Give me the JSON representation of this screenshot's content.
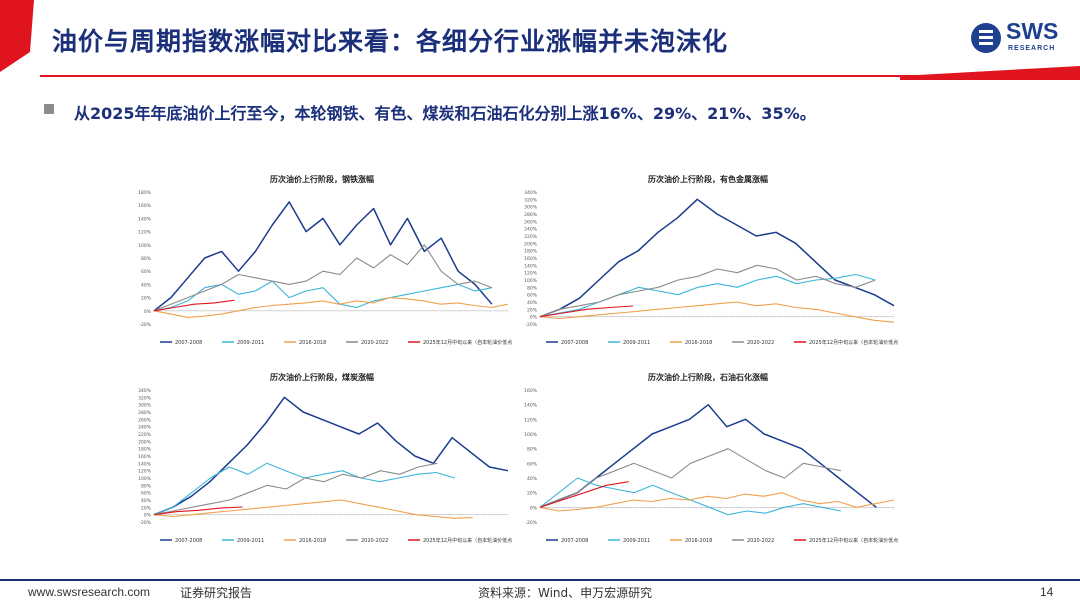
{
  "header": {
    "title": "油价与周期指数涨幅对比来看：各细分行业涨幅并未泡沫化",
    "logo_text": "SWS",
    "logo_sub": "RESEARCH",
    "accent_red": "#e0141e",
    "brand_blue": "#1b2f7a"
  },
  "bullet": {
    "text": "从2025年年底油价上行至今，本轮钢铁、有色、煤炭和石油石化分别上涨16%、29%、21%、35%。"
  },
  "series_colors": {
    "2007-2008": "#1a3b8f",
    "2009-2011": "#3bb5d9",
    "2016-2018": "#f0a04b",
    "2020-2022": "#8c8c8c",
    "2025": "#e0141e"
  },
  "chart_data": [
    {
      "type": "line",
      "title": "历次油价上行阶段，钢铁涨幅",
      "ylim": [
        -20,
        180
      ],
      "yticks": [
        "180%",
        "160%",
        "140%",
        "120%",
        "100%",
        "80%",
        "60%",
        "40%",
        "20%",
        "0%",
        "-20%"
      ],
      "legend": [
        "2007-2008",
        "2009-2011",
        "2016-2018",
        "2020-2022",
        "2025年12月中旬以来（自本轮油价低点以来）"
      ],
      "series": [
        {
          "name": "2007-2008",
          "values": [
            0,
            20,
            50,
            80,
            90,
            60,
            90,
            130,
            165,
            120,
            140,
            100,
            130,
            155,
            100,
            140,
            90,
            110,
            60,
            40,
            10
          ]
        },
        {
          "name": "2009-2011",
          "values": [
            0,
            5,
            15,
            35,
            40,
            25,
            30,
            45,
            20,
            30,
            35,
            10,
            5,
            15,
            20,
            25,
            30,
            35,
            40,
            30,
            35
          ]
        },
        {
          "name": "2016-2018",
          "values": [
            0,
            -5,
            -10,
            -8,
            -5,
            0,
            5,
            8,
            10,
            12,
            15,
            10,
            15,
            12,
            20,
            18,
            15,
            10,
            12,
            8,
            5,
            10
          ]
        },
        {
          "name": "2020-2022",
          "values": [
            0,
            10,
            20,
            30,
            40,
            55,
            50,
            45,
            40,
            45,
            60,
            55,
            80,
            65,
            85,
            70,
            100,
            60,
            40,
            45,
            35
          ]
        },
        {
          "name": "2025",
          "values": [
            0,
            5,
            10,
            12,
            16
          ]
        }
      ]
    },
    {
      "type": "line",
      "title": "历次油价上行阶段，有色金属涨幅",
      "ylim": [
        -20,
        340
      ],
      "yticks": [
        "340%",
        "320%",
        "300%",
        "280%",
        "260%",
        "240%",
        "220%",
        "200%",
        "180%",
        "160%",
        "140%",
        "120%",
        "100%",
        "80%",
        "60%",
        "40%",
        "20%",
        "0%",
        "-20%"
      ],
      "legend": [
        "2007-2008",
        "2009-2011",
        "2016-2018",
        "2020-2022",
        "2025年12月中旬以来（自本轮油价低点以来）"
      ],
      "series": [
        {
          "name": "2007-2008",
          "values": [
            0,
            20,
            50,
            100,
            150,
            180,
            230,
            270,
            320,
            280,
            250,
            220,
            230,
            200,
            150,
            100,
            80,
            60,
            30
          ]
        },
        {
          "name": "2009-2011",
          "values": [
            0,
            10,
            20,
            40,
            60,
            80,
            70,
            60,
            80,
            90,
            80,
            100,
            110,
            90,
            100,
            105,
            115,
            100
          ]
        },
        {
          "name": "2016-2018",
          "values": [
            0,
            -5,
            0,
            5,
            10,
            15,
            20,
            25,
            30,
            35,
            40,
            30,
            35,
            25,
            20,
            10,
            0,
            -10,
            -15
          ]
        },
        {
          "name": "2020-2022",
          "values": [
            0,
            20,
            30,
            40,
            60,
            70,
            80,
            100,
            110,
            130,
            120,
            140,
            130,
            100,
            110,
            90,
            80,
            100
          ]
        },
        {
          "name": "2025",
          "values": [
            0,
            10,
            20,
            25,
            29
          ]
        }
      ]
    },
    {
      "type": "line",
      "title": "历次油价上行阶段，煤炭涨幅",
      "ylim": [
        -20,
        340
      ],
      "yticks": [
        "340%",
        "320%",
        "300%",
        "280%",
        "260%",
        "240%",
        "220%",
        "200%",
        "180%",
        "160%",
        "140%",
        "120%",
        "100%",
        "80%",
        "60%",
        "40%",
        "20%",
        "0%",
        "-20%"
      ],
      "legend": [
        "2007-2008",
        "2009-2011",
        "2016-2018",
        "2020-2022",
        "2025年12月中旬以来（自本轮油价低点以来）"
      ],
      "series": [
        {
          "name": "2007-2008",
          "values": [
            0,
            20,
            50,
            90,
            140,
            190,
            250,
            320,
            280,
            260,
            240,
            220,
            250,
            200,
            160,
            140,
            210,
            170,
            130,
            120
          ]
        },
        {
          "name": "2009-2011",
          "values": [
            0,
            20,
            60,
            100,
            130,
            110,
            140,
            120,
            100,
            110,
            120,
            100,
            90,
            100,
            110,
            115,
            100
          ]
        },
        {
          "name": "2016-2018",
          "values": [
            0,
            -5,
            0,
            5,
            10,
            15,
            20,
            25,
            30,
            35,
            40,
            30,
            20,
            10,
            0,
            -5,
            -10,
            -8
          ]
        },
        {
          "name": "2020-2022",
          "values": [
            0,
            10,
            20,
            30,
            40,
            60,
            80,
            70,
            100,
            90,
            110,
            100,
            120,
            110,
            130,
            140
          ]
        },
        {
          "name": "2025",
          "values": [
            0,
            8,
            12,
            18,
            21
          ]
        }
      ]
    },
    {
      "type": "line",
      "title": "历次油价上行阶段，石油石化涨幅",
      "ylim": [
        -20,
        160
      ],
      "yticks": [
        "160%",
        "140%",
        "120%",
        "100%",
        "80%",
        "60%",
        "40%",
        "20%",
        "0%",
        "-20%"
      ],
      "legend": [
        "2007-2008",
        "2009-2011",
        "2016-2018",
        "2020-2022",
        "2025年12月中旬以来（自本轮油价低点以来）"
      ],
      "series": [
        {
          "name": "2007-2008",
          "values": [
            0,
            10,
            20,
            40,
            60,
            80,
            100,
            110,
            120,
            140,
            110,
            120,
            100,
            90,
            80,
            60,
            40,
            20,
            0
          ]
        },
        {
          "name": "2009-2011",
          "values": [
            0,
            20,
            40,
            30,
            25,
            20,
            30,
            20,
            10,
            0,
            -10,
            -5,
            -8,
            0,
            5,
            0,
            -5
          ]
        },
        {
          "name": "2016-2018",
          "values": [
            0,
            -5,
            -3,
            0,
            5,
            10,
            8,
            12,
            10,
            15,
            12,
            18,
            15,
            20,
            10,
            5,
            8,
            0,
            5,
            10
          ]
        },
        {
          "name": "2020-2022",
          "values": [
            0,
            10,
            20,
            40,
            50,
            60,
            50,
            40,
            60,
            70,
            80,
            65,
            50,
            40,
            60,
            55,
            50
          ]
        },
        {
          "name": "2025",
          "values": [
            0,
            10,
            20,
            30,
            35
          ]
        }
      ]
    }
  ],
  "footer": {
    "url": "www.swsresearch.com",
    "report": "证券研究报告",
    "source": "资料来源：Wind、申万宏源研究",
    "page": "14"
  }
}
